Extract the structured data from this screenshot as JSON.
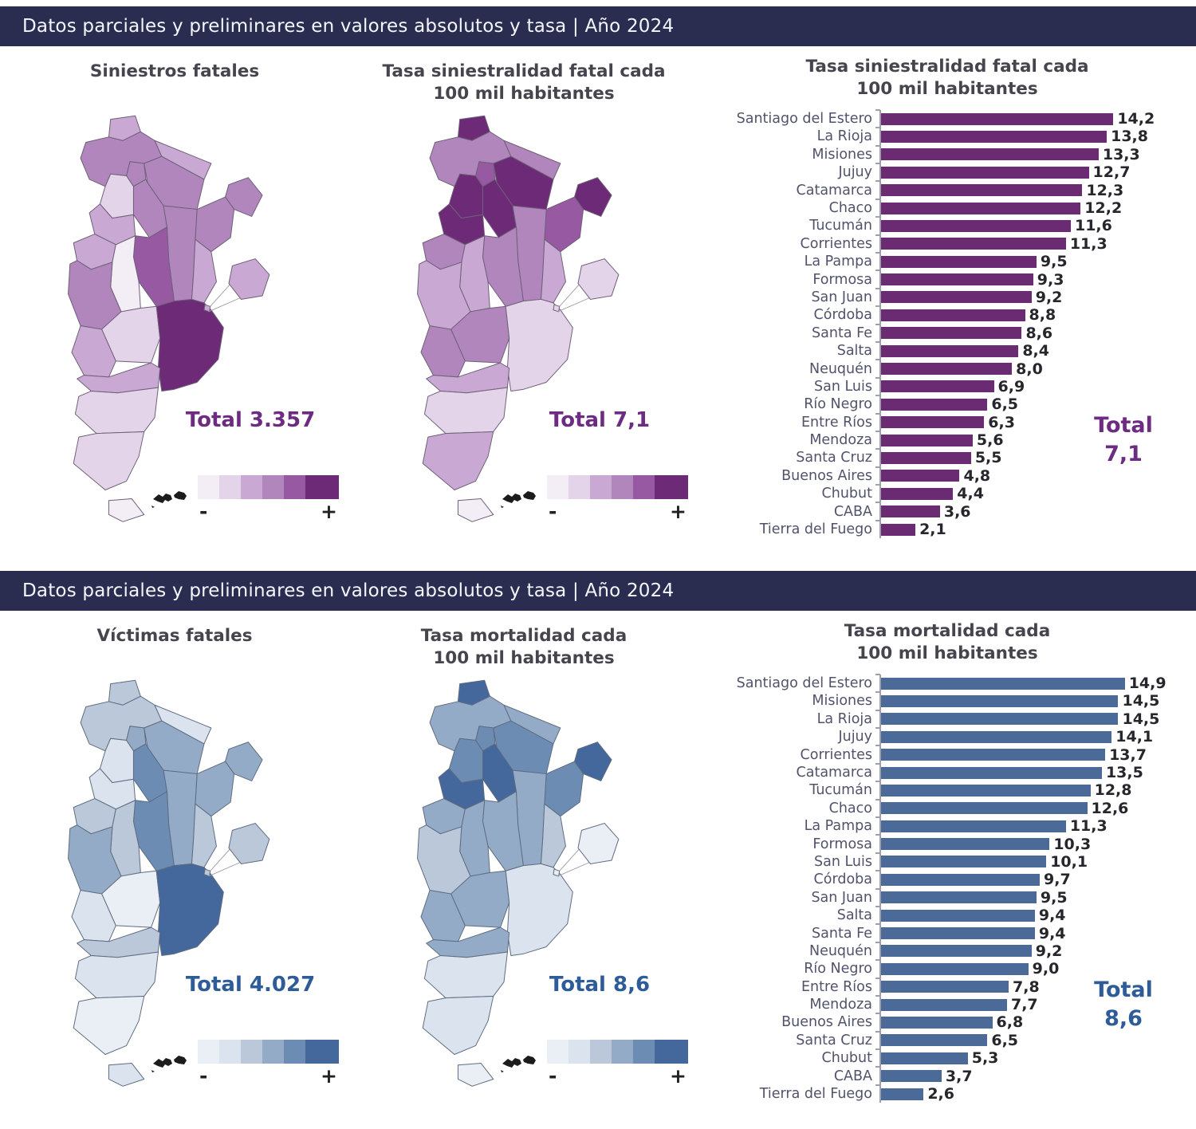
{
  "palettes": {
    "purple": [
      "#f3edf5",
      "#e4d4ea",
      "#c9a9d3",
      "#b086bd",
      "#9659a2",
      "#6d2a77"
    ],
    "blue": [
      "#eaeef5",
      "#dbe3ee",
      "#bac8da",
      "#94abc7",
      "#6d8cb3",
      "#44689b"
    ]
  },
  "sections": [
    {
      "theme": "purple",
      "header": "Datos parciales y preliminares en valores absolutos y tasa | Año 2024",
      "maps": [
        {
          "title_line1": "Siniestros fatales",
          "title_line2": "",
          "total_label": "Total",
          "total_value": "3.357",
          "legend_minus": "-",
          "legend_plus": "+",
          "levels": {
            "jujuy": 2,
            "salta": 3,
            "tucuman": 3,
            "formosa": 2,
            "chaco": 3,
            "santiago": 3,
            "catamarca": 1,
            "misiones": 3,
            "corrientes": 3,
            "larioja": 2,
            "santafe": 3,
            "entrerios": 2,
            "cordoba": 4,
            "sanjuan": 2,
            "sanluis": 0,
            "mendoza": 3,
            "lapampa": 1,
            "buenosaires": 5,
            "caba": 2,
            "neuquen": 2,
            "rionegro": 2,
            "chubut": 1,
            "santacruz": 1,
            "tierradelfuego": 0
          }
        },
        {
          "title_line1": "Tasa siniestralidad fatal cada",
          "title_line2": "100 mil habitantes",
          "total_label": "Total",
          "total_value": "7,1",
          "legend_minus": "-",
          "legend_plus": "+",
          "levels": {
            "jujuy": 5,
            "salta": 3,
            "tucuman": 4,
            "formosa": 3,
            "chaco": 5,
            "santiago": 5,
            "catamarca": 5,
            "misiones": 5,
            "corrientes": 4,
            "larioja": 5,
            "santafe": 3,
            "entrerios": 2,
            "cordoba": 3,
            "sanjuan": 3,
            "sanluis": 2,
            "mendoza": 2,
            "lapampa": 3,
            "buenosaires": 1,
            "caba": 1,
            "neuquen": 3,
            "rionegro": 2,
            "chubut": 1,
            "santacruz": 2,
            "tierradelfuego": 0
          }
        }
      ],
      "chart": {
        "title_line1": "Tasa siniestralidad fatal cada",
        "title_line2": "100 mil habitantes",
        "total_label": "Total",
        "total_value": "7,1",
        "rows": [
          {
            "label": "Santiago del Estero",
            "value": 14.2,
            "display": "14,2"
          },
          {
            "label": "La Rioja",
            "value": 13.8,
            "display": "13,8"
          },
          {
            "label": "Misiones",
            "value": 13.3,
            "display": "13,3"
          },
          {
            "label": "Jujuy",
            "value": 12.7,
            "display": "12,7"
          },
          {
            "label": "Catamarca",
            "value": 12.3,
            "display": "12,3"
          },
          {
            "label": "Chaco",
            "value": 12.2,
            "display": "12,2"
          },
          {
            "label": "Tucumán",
            "value": 11.6,
            "display": "11,6"
          },
          {
            "label": "Corrientes",
            "value": 11.3,
            "display": "11,3"
          },
          {
            "label": "La Pampa",
            "value": 9.5,
            "display": "9,5"
          },
          {
            "label": "Formosa",
            "value": 9.3,
            "display": "9,3"
          },
          {
            "label": "San Juan",
            "value": 9.2,
            "display": "9,2"
          },
          {
            "label": "Córdoba",
            "value": 8.8,
            "display": "8,8"
          },
          {
            "label": "Santa Fe",
            "value": 8.6,
            "display": "8,6"
          },
          {
            "label": "Salta",
            "value": 8.4,
            "display": "8,4"
          },
          {
            "label": "Neuquén",
            "value": 8.0,
            "display": "8,0"
          },
          {
            "label": "San Luis",
            "value": 6.9,
            "display": "6,9"
          },
          {
            "label": "Río Negro",
            "value": 6.5,
            "display": "6,5"
          },
          {
            "label": "Entre Ríos",
            "value": 6.3,
            "display": "6,3"
          },
          {
            "label": "Mendoza",
            "value": 5.6,
            "display": "5,6"
          },
          {
            "label": "Santa Cruz",
            "value": 5.5,
            "display": "5,5"
          },
          {
            "label": "Buenos Aires",
            "value": 4.8,
            "display": "4,8"
          },
          {
            "label": "Chubut",
            "value": 4.4,
            "display": "4,4"
          },
          {
            "label": "CABA",
            "value": 3.6,
            "display": "3,6"
          },
          {
            "label": "Tierra del Fuego",
            "value": 2.1,
            "display": "2,1"
          }
        ]
      }
    },
    {
      "theme": "blue",
      "header": "Datos parciales y preliminares en valores absolutos y tasa | Año 2024",
      "maps": [
        {
          "title_line1": "Víctimas fatales",
          "title_line2": "",
          "total_label": "Total",
          "total_value": "4.027",
          "legend_minus": "-",
          "legend_plus": "+",
          "levels": {
            "jujuy": 2,
            "salta": 2,
            "tucuman": 3,
            "formosa": 1,
            "chaco": 3,
            "santiago": 4,
            "catamarca": 1,
            "misiones": 3,
            "corrientes": 3,
            "larioja": 1,
            "santafe": 3,
            "entrerios": 2,
            "cordoba": 4,
            "sanjuan": 2,
            "sanluis": 2,
            "mendoza": 3,
            "lapampa": 0,
            "buenosaires": 5,
            "caba": 2,
            "neuquen": 1,
            "rionegro": 2,
            "chubut": 1,
            "santacruz": 0,
            "tierradelfuego": 1
          }
        },
        {
          "title_line1": "Tasa mortalidad cada",
          "title_line2": "100 mil habitantes",
          "total_label": "Total",
          "total_value": "8,6",
          "legend_minus": "-",
          "legend_plus": "+",
          "levels": {
            "jujuy": 5,
            "salta": 3,
            "tucuman": 4,
            "formosa": 3,
            "chaco": 4,
            "santiago": 5,
            "catamarca": 4,
            "misiones": 5,
            "corrientes": 4,
            "larioja": 5,
            "santafe": 3,
            "entrerios": 2,
            "cordoba": 3,
            "sanjuan": 3,
            "sanluis": 3,
            "mendoza": 2,
            "lapampa": 3,
            "buenosaires": 1,
            "caba": 0,
            "neuquen": 3,
            "rionegro": 3,
            "chubut": 1,
            "santacruz": 1,
            "tierradelfuego": 0
          }
        }
      ],
      "chart": {
        "title_line1": "Tasa mortalidad cada",
        "title_line2": "100 mil habitantes",
        "total_label": "Total",
        "total_value": "8,6",
        "rows": [
          {
            "label": "Santiago del Estero",
            "value": 14.9,
            "display": "14,9"
          },
          {
            "label": "Misiones",
            "value": 14.5,
            "display": "14,5"
          },
          {
            "label": "La Rioja",
            "value": 14.5,
            "display": "14,5"
          },
          {
            "label": "Jujuy",
            "value": 14.1,
            "display": "14,1"
          },
          {
            "label": "Corrientes",
            "value": 13.7,
            "display": "13,7"
          },
          {
            "label": "Catamarca",
            "value": 13.5,
            "display": "13,5"
          },
          {
            "label": "Tucumán",
            "value": 12.8,
            "display": "12,8"
          },
          {
            "label": "Chaco",
            "value": 12.6,
            "display": "12,6"
          },
          {
            "label": "La Pampa",
            "value": 11.3,
            "display": "11,3"
          },
          {
            "label": "Formosa",
            "value": 10.3,
            "display": "10,3"
          },
          {
            "label": "San Luis",
            "value": 10.1,
            "display": "10,1"
          },
          {
            "label": "Córdoba",
            "value": 9.7,
            "display": "9,7"
          },
          {
            "label": "San Juan",
            "value": 9.5,
            "display": "9,5"
          },
          {
            "label": "Salta",
            "value": 9.4,
            "display": "9,4"
          },
          {
            "label": "Santa Fe",
            "value": 9.4,
            "display": "9,4"
          },
          {
            "label": "Neuquén",
            "value": 9.2,
            "display": "9,2"
          },
          {
            "label": "Río Negro",
            "value": 9.0,
            "display": "9,0"
          },
          {
            "label": "Entre Ríos",
            "value": 7.8,
            "display": "7,8"
          },
          {
            "label": "Mendoza",
            "value": 7.7,
            "display": "7,7"
          },
          {
            "label": "Buenos Aires",
            "value": 6.8,
            "display": "6,8"
          },
          {
            "label": "Santa Cruz",
            "value": 6.5,
            "display": "6,5"
          },
          {
            "label": "Chubut",
            "value": 5.3,
            "display": "5,3"
          },
          {
            "label": "CABA",
            "value": 3.7,
            "display": "3,7"
          },
          {
            "label": "Tierra del Fuego",
            "value": 2.6,
            "display": "2,6"
          }
        ]
      }
    }
  ],
  "chart_data": [
    {
      "type": "bar",
      "orientation": "horizontal",
      "title": "Tasa siniestralidad fatal cada 100 mil habitantes",
      "categories": [
        "Santiago del Estero",
        "La Rioja",
        "Misiones",
        "Jujuy",
        "Catamarca",
        "Chaco",
        "Tucumán",
        "Corrientes",
        "La Pampa",
        "Formosa",
        "San Juan",
        "Córdoba",
        "Santa Fe",
        "Salta",
        "Neuquén",
        "San Luis",
        "Río Negro",
        "Entre Ríos",
        "Mendoza",
        "Santa Cruz",
        "Buenos Aires",
        "Chubut",
        "CABA",
        "Tierra del Fuego"
      ],
      "values": [
        14.2,
        13.8,
        13.3,
        12.7,
        12.3,
        12.2,
        11.6,
        11.3,
        9.5,
        9.3,
        9.2,
        8.8,
        8.6,
        8.4,
        8.0,
        6.9,
        6.5,
        6.3,
        5.6,
        5.5,
        4.8,
        4.4,
        3.6,
        2.1
      ],
      "total": 7.1,
      "xlim": [
        0,
        15.5
      ],
      "bar_color": "#6a2b72",
      "map_totals": {
        "siniestros_fatales": 3357,
        "tasa_total": 7.1
      }
    },
    {
      "type": "bar",
      "orientation": "horizontal",
      "title": "Tasa mortalidad cada 100 mil habitantes",
      "categories": [
        "Santiago del Estero",
        "Misiones",
        "La Rioja",
        "Jujuy",
        "Corrientes",
        "Catamarca",
        "Tucumán",
        "Chaco",
        "La Pampa",
        "Formosa",
        "San Luis",
        "Córdoba",
        "San Juan",
        "Salta",
        "Santa Fe",
        "Neuquén",
        "Río Negro",
        "Entre Ríos",
        "Mendoza",
        "Buenos Aires",
        "Santa Cruz",
        "Chubut",
        "CABA",
        "Tierra del Fuego"
      ],
      "values": [
        14.9,
        14.5,
        14.5,
        14.1,
        13.7,
        13.5,
        12.8,
        12.6,
        11.3,
        10.3,
        10.1,
        9.7,
        9.5,
        9.4,
        9.4,
        9.2,
        9.0,
        7.8,
        7.7,
        6.8,
        6.5,
        5.3,
        3.7,
        2.6
      ],
      "total": 8.6,
      "xlim": [
        0,
        15.5
      ],
      "bar_color": "#4b6a98",
      "map_totals": {
        "victimas_fatales": 4027,
        "tasa_total": 8.6
      }
    }
  ]
}
